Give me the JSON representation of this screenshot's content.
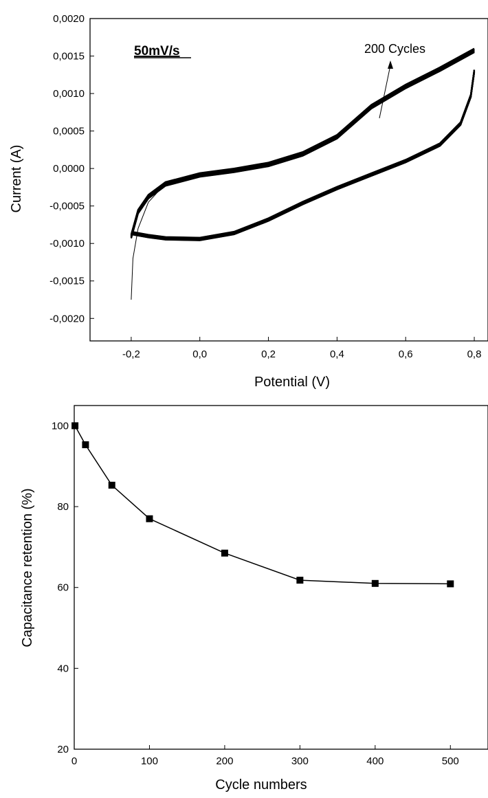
{
  "chart_data": [
    {
      "type": "line",
      "title": "",
      "xlabel": "Potential (V)",
      "ylabel": "Current (A)",
      "xlim": [
        -0.32,
        0.84
      ],
      "ylim": [
        -0.0023,
        0.002
      ],
      "x_ticks": [
        -0.2,
        0.0,
        0.2,
        0.4,
        0.6,
        0.8
      ],
      "x_tick_labels": [
        "-0,2",
        "0,0",
        "0,2",
        "0,4",
        "0,6",
        "0,8"
      ],
      "y_ticks": [
        -0.002,
        -0.0015,
        -0.001,
        -0.0005,
        0.0,
        0.0005,
        0.001,
        0.0015,
        0.002
      ],
      "y_tick_labels": [
        "-0,0020",
        "-0,0015",
        "-0,0010",
        "-0,0005",
        "0,0000",
        "0,0005",
        "0,0010",
        "0,0015",
        "0,0020"
      ],
      "annotations": [
        "50mV/s",
        "200 Cycles"
      ],
      "series": [
        {
          "values": [
            {
              "x": -0.2,
              "y": -0.00088
            },
            {
              "x": -0.15,
              "y": -0.00092
            },
            {
              "x": -0.1,
              "y": -0.00095
            },
            {
              "x": 0.0,
              "y": -0.00096
            },
            {
              "x": 0.1,
              "y": -0.00088
            },
            {
              "x": 0.2,
              "y": -0.0007
            },
            {
              "x": 0.3,
              "y": -0.00048
            },
            {
              "x": 0.4,
              "y": -0.00028
            },
            {
              "x": 0.5,
              "y": -0.0001
            },
            {
              "x": 0.6,
              "y": 8e-05
            },
            {
              "x": 0.7,
              "y": 0.0003
            },
            {
              "x": 0.76,
              "y": 0.00058
            },
            {
              "x": 0.79,
              "y": 0.00095
            },
            {
              "x": 0.8,
              "y": 0.00128
            }
          ]
        },
        {
          "values": [
            {
              "x": 0.8,
              "y": 0.0016
            },
            {
              "x": 0.7,
              "y": 0.00135
            },
            {
              "x": 0.6,
              "y": 0.00112
            },
            {
              "x": 0.5,
              "y": 0.00085
            },
            {
              "x": 0.4,
              "y": 0.00045
            },
            {
              "x": 0.3,
              "y": 0.00022
            },
            {
              "x": 0.2,
              "y": 8e-05
            },
            {
              "x": 0.1,
              "y": 0.0
            },
            {
              "x": 0.0,
              "y": -6e-05
            },
            {
              "x": -0.1,
              "y": -0.00018
            },
            {
              "x": -0.15,
              "y": -0.00035
            },
            {
              "x": -0.18,
              "y": -0.00055
            },
            {
              "x": -0.2,
              "y": -0.00088
            }
          ]
        },
        {
          "values": [
            {
              "x": -0.2,
              "y": -0.00175
            },
            {
              "x": -0.195,
              "y": -0.0012
            },
            {
              "x": -0.18,
              "y": -0.0008
            },
            {
              "x": -0.15,
              "y": -0.00045
            },
            {
              "x": -0.1,
              "y": -0.0002
            },
            {
              "x": 0.0,
              "y": -6e-05
            }
          ]
        }
      ]
    },
    {
      "type": "line",
      "title": "",
      "xlabel": "Cycle numbers",
      "ylabel": "Capacitance retention (%)",
      "xlim": [
        0,
        550
      ],
      "ylim": [
        20,
        105
      ],
      "x_ticks": [
        0,
        100,
        200,
        300,
        400,
        500
      ],
      "x_tick_labels": [
        "0",
        "100",
        "200",
        "300",
        "400",
        "500"
      ],
      "y_ticks": [
        20,
        40,
        60,
        80,
        100
      ],
      "y_tick_labels": [
        "20",
        "40",
        "60",
        "80",
        "100"
      ],
      "series": [
        {
          "values": [
            {
              "x": 1,
              "y": 100
            },
            {
              "x": 15,
              "y": 95.3
            },
            {
              "x": 50,
              "y": 85.3
            },
            {
              "x": 100,
              "y": 77
            },
            {
              "x": 200,
              "y": 68.5
            },
            {
              "x": 300,
              "y": 61.8
            },
            {
              "x": 400,
              "y": 61
            },
            {
              "x": 500,
              "y": 60.9
            }
          ]
        }
      ]
    }
  ]
}
